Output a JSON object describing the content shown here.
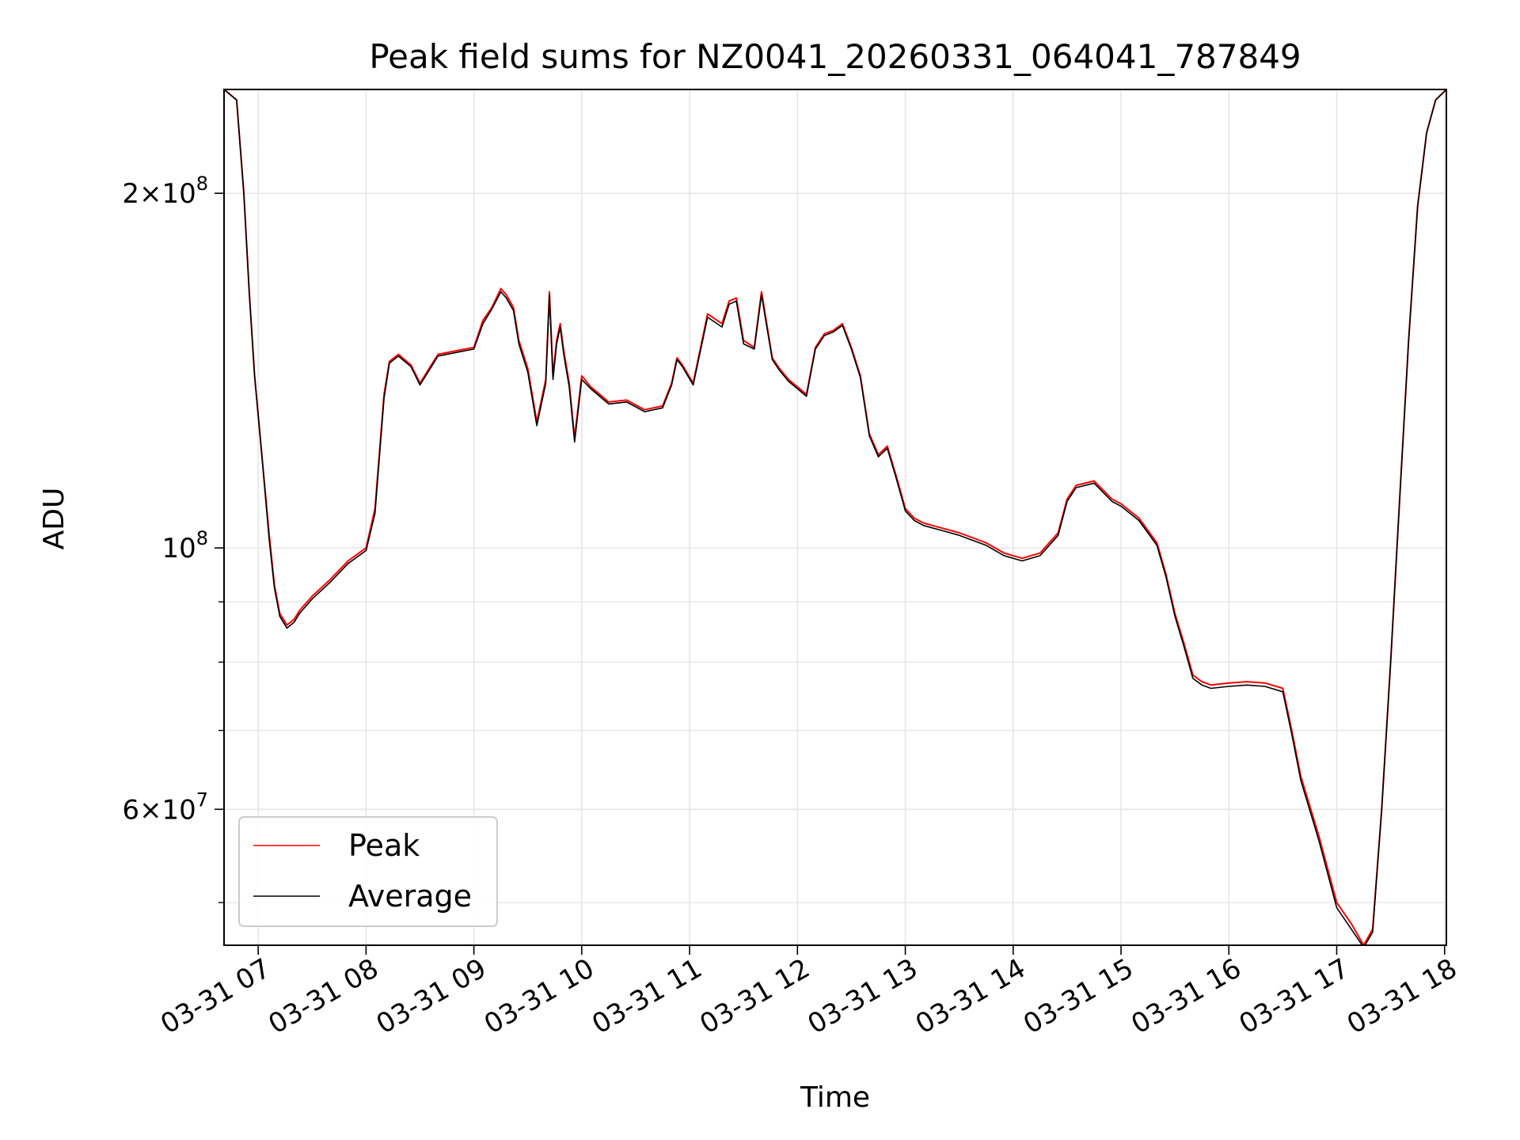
{
  "chart_data": {
    "type": "line",
    "title": "Peak field sums for NZ0041_20260331_064041_787849",
    "xlabel": "Time",
    "ylabel": "ADU",
    "y_scale": "log",
    "ylim": [
      46000000,
      245000000
    ],
    "xlim": [
      "03-31 06:41",
      "03-31 18:01"
    ],
    "x_tick_labels": [
      "03-31 07",
      "03-31 08",
      "03-31 09",
      "03-31 10",
      "03-31 11",
      "03-31 12",
      "03-31 13",
      "03-31 14",
      "03-31 15",
      "03-31 16",
      "03-31 17",
      "03-31 18"
    ],
    "x_tick_times": [
      "03-31 07:00",
      "03-31 08:00",
      "03-31 09:00",
      "03-31 10:00",
      "03-31 11:00",
      "03-31 12:00",
      "03-31 13:00",
      "03-31 14:00",
      "03-31 15:00",
      "03-31 16:00",
      "03-31 17:00",
      "03-31 18:00"
    ],
    "y_tick_labels": [
      {
        "value": 200000000,
        "base": "2×10",
        "exp": "8"
      },
      {
        "value": 100000000,
        "base": "10",
        "exp": "8"
      },
      {
        "value": 60000000,
        "base": "6×10",
        "exp": "7"
      }
    ],
    "y_minor_ticks": [
      50000000,
      70000000,
      80000000,
      90000000
    ],
    "grid": true,
    "legend_position": "lower-left",
    "series": [
      {
        "name": "Peak",
        "color": "#ff0000",
        "x": [
          "03-31 06:41",
          "03-31 06:48",
          "03-31 06:52",
          "03-31 06:55",
          "03-31 06:58",
          "03-31 07:02",
          "03-31 07:06",
          "03-31 07:09",
          "03-31 07:12",
          "03-31 07:16",
          "03-31 07:20",
          "03-31 07:23",
          "03-31 07:30",
          "03-31 07:40",
          "03-31 07:50",
          "03-31 08:00",
          "03-31 08:05",
          "03-31 08:10",
          "03-31 08:13",
          "03-31 08:18",
          "03-31 08:25",
          "03-31 08:30",
          "03-31 08:40",
          "03-31 08:50",
          "03-31 09:00",
          "03-31 09:05",
          "03-31 09:10",
          "03-31 09:15",
          "03-31 09:18",
          "03-31 09:22",
          "03-31 09:25",
          "03-31 09:30",
          "03-31 09:35",
          "03-31 09:40",
          "03-31 09:42",
          "03-31 09:44",
          "03-31 09:46",
          "03-31 09:48",
          "03-31 09:50",
          "03-31 09:53",
          "03-31 09:56",
          "03-31 10:00",
          "03-31 10:05",
          "03-31 10:15",
          "03-31 10:25",
          "03-31 10:35",
          "03-31 10:45",
          "03-31 10:50",
          "03-31 10:53",
          "03-31 10:56",
          "03-31 11:02",
          "03-31 11:10",
          "03-31 11:18",
          "03-31 11:22",
          "03-31 11:26",
          "03-31 11:30",
          "03-31 11:36",
          "03-31 11:40",
          "03-31 11:46",
          "03-31 11:50",
          "03-31 11:55",
          "03-31 12:00",
          "03-31 12:05",
          "03-31 12:10",
          "03-31 12:15",
          "03-31 12:20",
          "03-31 12:25",
          "03-31 12:30",
          "03-31 12:35",
          "03-31 12:40",
          "03-31 12:45",
          "03-31 12:50",
          "03-31 12:55",
          "03-31 13:00",
          "03-31 13:05",
          "03-31 13:10",
          "03-31 13:15",
          "03-31 13:20",
          "03-31 13:30",
          "03-31 13:45",
          "03-31 13:55",
          "03-31 14:05",
          "03-31 14:15",
          "03-31 14:25",
          "03-31 14:30",
          "03-31 14:35",
          "03-31 14:45",
          "03-31 14:50",
          "03-31 14:55",
          "03-31 15:00",
          "03-31 15:10",
          "03-31 15:20",
          "03-31 15:25",
          "03-31 15:30",
          "03-31 15:35",
          "03-31 15:40",
          "03-31 15:45",
          "03-31 15:50",
          "03-31 16:00",
          "03-31 16:10",
          "03-31 16:20",
          "03-31 16:30",
          "03-31 16:35",
          "03-31 16:40",
          "03-31 16:50",
          "03-31 17:00",
          "03-31 17:08",
          "03-31 17:15",
          "03-31 17:20",
          "03-31 17:25",
          "03-31 17:30",
          "03-31 17:35",
          "03-31 17:40",
          "03-31 17:45",
          "03-31 17:50",
          "03-31 17:55",
          "03-31 18:01"
        ],
        "y": [
          245000000,
          240000000,
          200000000,
          165000000,
          140000000,
          120000000,
          103000000,
          93000000,
          88000000,
          86000000,
          87000000,
          88500000,
          91000000,
          94000000,
          97500000,
          100000000,
          108000000,
          135000000,
          144000000,
          146000000,
          143000000,
          138000000,
          146000000,
          147000000,
          148000000,
          156000000,
          160000000,
          166000000,
          164000000,
          160000000,
          150000000,
          142000000,
          128000000,
          139000000,
          165000000,
          140000000,
          150000000,
          155000000,
          147000000,
          138000000,
          124000000,
          140000000,
          137000000,
          133000000,
          133500000,
          131000000,
          132000000,
          138000000,
          145000000,
          143000000,
          138000000,
          158000000,
          155000000,
          162000000,
          163000000,
          150000000,
          148000000,
          165000000,
          145000000,
          142000000,
          139000000,
          137000000,
          135000000,
          148000000,
          152000000,
          153000000,
          155000000,
          148000000,
          140000000,
          125000000,
          120000000,
          122000000,
          115000000,
          108000000,
          106000000,
          105000000,
          104500000,
          104000000,
          103000000,
          101000000,
          99000000,
          98000000,
          99000000,
          103000000,
          110000000,
          113000000,
          114000000,
          112000000,
          110000000,
          109000000,
          106000000,
          101000000,
          95000000,
          88000000,
          83000000,
          78000000,
          77000000,
          76500000,
          76800000,
          77000000,
          76800000,
          76000000,
          70000000,
          64000000,
          57000000,
          50000000,
          48000000,
          46000000,
          47500000,
          60000000,
          80000000,
          110000000,
          150000000,
          195000000,
          225000000,
          240000000,
          245000000
        ]
      },
      {
        "name": "Average",
        "color": "#000000",
        "x": [
          "03-31 06:41",
          "03-31 06:48",
          "03-31 06:52",
          "03-31 06:55",
          "03-31 06:58",
          "03-31 07:02",
          "03-31 07:06",
          "03-31 07:09",
          "03-31 07:12",
          "03-31 07:16",
          "03-31 07:20",
          "03-31 07:23",
          "03-31 07:30",
          "03-31 07:40",
          "03-31 07:50",
          "03-31 08:00",
          "03-31 08:05",
          "03-31 08:10",
          "03-31 08:13",
          "03-31 08:18",
          "03-31 08:25",
          "03-31 08:30",
          "03-31 08:40",
          "03-31 08:50",
          "03-31 09:00",
          "03-31 09:05",
          "03-31 09:10",
          "03-31 09:15",
          "03-31 09:18",
          "03-31 09:22",
          "03-31 09:25",
          "03-31 09:30",
          "03-31 09:35",
          "03-31 09:40",
          "03-31 09:42",
          "03-31 09:44",
          "03-31 09:46",
          "03-31 09:48",
          "03-31 09:50",
          "03-31 09:53",
          "03-31 09:56",
          "03-31 10:00",
          "03-31 10:05",
          "03-31 10:15",
          "03-31 10:25",
          "03-31 10:35",
          "03-31 10:45",
          "03-31 10:50",
          "03-31 10:53",
          "03-31 10:56",
          "03-31 11:02",
          "03-31 11:10",
          "03-31 11:18",
          "03-31 11:22",
          "03-31 11:26",
          "03-31 11:30",
          "03-31 11:36",
          "03-31 11:40",
          "03-31 11:46",
          "03-31 11:50",
          "03-31 11:55",
          "03-31 12:00",
          "03-31 12:05",
          "03-31 12:10",
          "03-31 12:15",
          "03-31 12:20",
          "03-31 12:25",
          "03-31 12:30",
          "03-31 12:35",
          "03-31 12:40",
          "03-31 12:45",
          "03-31 12:50",
          "03-31 12:55",
          "03-31 13:00",
          "03-31 13:05",
          "03-31 13:10",
          "03-31 13:15",
          "03-31 13:20",
          "03-31 13:30",
          "03-31 13:45",
          "03-31 13:55",
          "03-31 14:05",
          "03-31 14:15",
          "03-31 14:25",
          "03-31 14:30",
          "03-31 14:35",
          "03-31 14:45",
          "03-31 14:50",
          "03-31 14:55",
          "03-31 15:00",
          "03-31 15:10",
          "03-31 15:20",
          "03-31 15:25",
          "03-31 15:30",
          "03-31 15:35",
          "03-31 15:40",
          "03-31 15:45",
          "03-31 15:50",
          "03-31 16:00",
          "03-31 16:10",
          "03-31 16:20",
          "03-31 16:30",
          "03-31 16:35",
          "03-31 16:40",
          "03-31 16:50",
          "03-31 17:00",
          "03-31 17:08",
          "03-31 17:15",
          "03-31 17:20",
          "03-31 17:25",
          "03-31 17:30",
          "03-31 17:35",
          "03-31 17:40",
          "03-31 17:45",
          "03-31 17:50",
          "03-31 17:55",
          "03-31 18:01"
        ],
        "y": [
          245000000,
          240000000,
          200000000,
          165000000,
          140000000,
          120000000,
          102000000,
          92500000,
          87500000,
          85500000,
          86500000,
          88000000,
          90500000,
          93500000,
          97000000,
          99500000,
          107000000,
          134000000,
          143500000,
          145500000,
          142500000,
          137500000,
          145500000,
          146500000,
          147500000,
          155000000,
          159500000,
          165000000,
          163000000,
          159000000,
          149000000,
          141000000,
          127000000,
          138000000,
          164000000,
          139000000,
          149000000,
          154000000,
          146000000,
          137000000,
          123000000,
          139000000,
          136500000,
          132500000,
          133000000,
          130500000,
          131500000,
          137500000,
          144500000,
          142500000,
          137500000,
          157000000,
          154000000,
          161000000,
          162000000,
          149000000,
          147500000,
          164000000,
          144500000,
          141500000,
          138500000,
          136500000,
          134500000,
          147500000,
          151500000,
          152500000,
          154500000,
          147500000,
          139500000,
          124500000,
          119500000,
          121500000,
          114500000,
          107500000,
          105500000,
          104500000,
          104000000,
          103500000,
          102500000,
          100500000,
          98500000,
          97500000,
          98500000,
          102500000,
          109500000,
          112500000,
          113500000,
          111500000,
          109500000,
          108500000,
          105500000,
          100500000,
          94500000,
          87500000,
          82500000,
          77500000,
          76500000,
          76000000,
          76300000,
          76500000,
          76300000,
          75500000,
          69500000,
          63500000,
          56500000,
          49500000,
          47500000,
          45800000,
          47200000,
          60000000,
          80000000,
          110000000,
          150000000,
          195000000,
          225000000,
          240000000,
          245000000
        ]
      }
    ]
  }
}
